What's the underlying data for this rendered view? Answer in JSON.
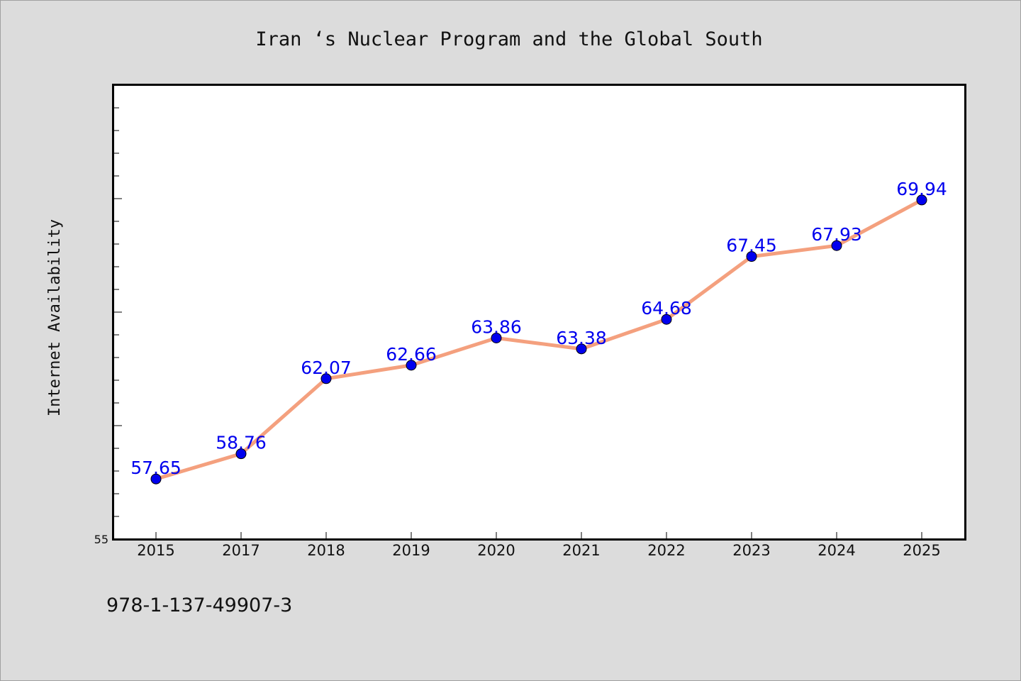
{
  "chart_data": {
    "type": "line",
    "title": "Iran ‘s Nuclear Program and the Global South",
    "xlabel": "",
    "ylabel": "Internet Availability",
    "categories": [
      "2015",
      "2017",
      "2018",
      "2019",
      "2020",
      "2021",
      "2022",
      "2023",
      "2024",
      "2025"
    ],
    "series": [
      {
        "values": [
          57.65,
          58.76,
          62.07,
          62.66,
          63.86,
          63.38,
          64.68,
          67.45,
          67.93,
          69.94
        ]
      }
    ],
    "data_labels": [
      "57.65",
      "58.76",
      "62.07",
      "62.66",
      "63.86",
      "63.38",
      "64.68",
      "67.45",
      "67.93",
      "69.94"
    ],
    "y_tick_labels": [
      "55"
    ],
    "ylim": [
      55,
      75
    ],
    "grid": false,
    "colors": {
      "line": "#f4a07e",
      "marker": "#0000ee",
      "data_label": "#0000ee",
      "plot_background": "#ffffff",
      "page_background": "#dcdcdc"
    }
  },
  "footer_text": "978-1-137-49907-3"
}
